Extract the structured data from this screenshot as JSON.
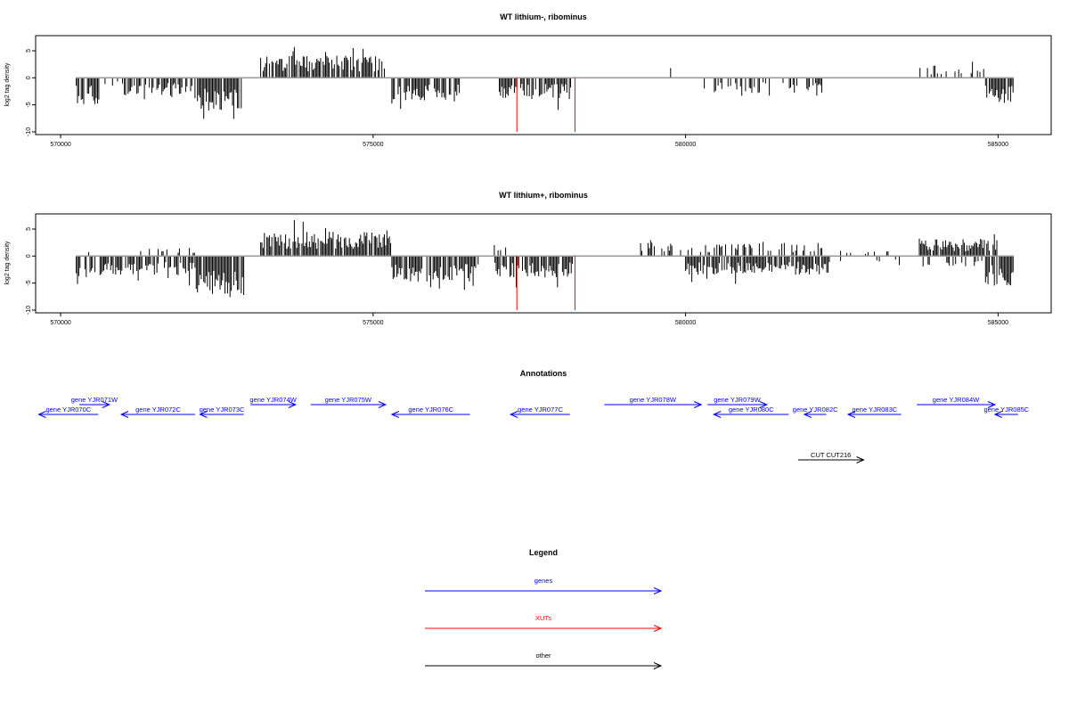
{
  "chart_data": [
    {
      "type": "bar",
      "title": "WT lithium-, ribominus",
      "ylabel": "log2 tag density",
      "xlabel": "",
      "xlim": [
        569600,
        585850
      ],
      "ylim": [
        -10.5,
        7.8
      ],
      "x_ticks": [
        570000,
        575000,
        580000,
        585000
      ],
      "y_ticks": [
        -10,
        -5,
        0,
        5
      ],
      "grid": false,
      "profile": {
        "x_start": 570250,
        "x_end": 585250,
        "step": 20,
        "regions": [
          {
            "from": 570250,
            "to": 570650,
            "strand": "minus",
            "level": 4.0,
            "fill": 0.7
          },
          {
            "from": 570650,
            "to": 571000,
            "strand": "minus",
            "level": 1.5,
            "fill": 0.3
          },
          {
            "from": 571000,
            "to": 572150,
            "strand": "minus",
            "level": 2.8,
            "fill": 0.65
          },
          {
            "from": 572150,
            "to": 572900,
            "strand": "minus",
            "level": 5.2,
            "fill": 0.9
          },
          {
            "from": 573200,
            "to": 575200,
            "strand": "plus",
            "level": 3.3,
            "fill": 0.85
          },
          {
            "from": 575300,
            "to": 576400,
            "strand": "minus",
            "level": 3.5,
            "fill": 0.75
          },
          {
            "from": 577000,
            "to": 578200,
            "strand": "minus",
            "level": 3.2,
            "fill": 0.8
          },
          {
            "from": 579000,
            "to": 580000,
            "strand": "plus",
            "level": 1.5,
            "fill": 0.03
          },
          {
            "from": 580300,
            "to": 582200,
            "strand": "minus",
            "level": 2.3,
            "fill": 0.3
          },
          {
            "from": 582500,
            "to": 583500,
            "strand": "plus",
            "level": 1.0,
            "fill": 0.02
          },
          {
            "from": 583000,
            "to": 583500,
            "strand": "minus",
            "level": 2.0,
            "fill": 0.04
          },
          {
            "from": 583750,
            "to": 584800,
            "strand": "plus",
            "level": 1.8,
            "fill": 0.3
          },
          {
            "from": 584800,
            "to": 585250,
            "strand": "minus",
            "level": 3.8,
            "fill": 0.85
          }
        ]
      },
      "xut_lines": [
        {
          "x": 577300,
          "y": -10.0,
          "color": "#ff0000"
        },
        {
          "x": 578230,
          "y": -10.0,
          "color": "#ff0000"
        }
      ]
    },
    {
      "type": "bar",
      "title": "WT lithium+, ribominus",
      "ylabel": "log2 tag density",
      "xlabel": "",
      "xlim": [
        569600,
        585850
      ],
      "ylim": [
        -10.5,
        7.8
      ],
      "x_ticks": [
        570000,
        575000,
        580000,
        585000
      ],
      "y_ticks": [
        -10,
        -5,
        0,
        5
      ],
      "grid": false,
      "profile": {
        "x_start": 570250,
        "x_end": 585250,
        "step": 20,
        "regions": [
          {
            "from": 570250,
            "to": 570700,
            "strand": "minus",
            "level": 3.5,
            "fill": 0.7
          },
          {
            "from": 570250,
            "to": 570700,
            "strand": "plus",
            "level": 1.2,
            "fill": 0.15
          },
          {
            "from": 570700,
            "to": 572150,
            "strand": "minus",
            "level": 3.0,
            "fill": 0.75
          },
          {
            "from": 571000,
            "to": 572150,
            "strand": "plus",
            "level": 1.3,
            "fill": 0.15
          },
          {
            "from": 572150,
            "to": 572950,
            "strand": "minus",
            "level": 5.8,
            "fill": 0.95
          },
          {
            "from": 573200,
            "to": 575300,
            "strand": "plus",
            "level": 3.6,
            "fill": 0.9
          },
          {
            "from": 575300,
            "to": 576700,
            "strand": "minus",
            "level": 3.8,
            "fill": 0.85
          },
          {
            "from": 576900,
            "to": 577300,
            "strand": "plus",
            "level": 2.0,
            "fill": 0.2
          },
          {
            "from": 576950,
            "to": 578200,
            "strand": "minus",
            "level": 3.2,
            "fill": 0.85
          },
          {
            "from": 579200,
            "to": 582200,
            "strand": "plus",
            "level": 2.0,
            "fill": 0.4
          },
          {
            "from": 580000,
            "to": 582300,
            "strand": "minus",
            "level": 2.8,
            "fill": 0.85
          },
          {
            "from": 582300,
            "to": 583700,
            "strand": "plus",
            "level": 1.0,
            "fill": 0.15
          },
          {
            "from": 582300,
            "to": 583500,
            "strand": "minus",
            "level": 1.0,
            "fill": 0.15
          },
          {
            "from": 583700,
            "to": 585000,
            "strand": "plus",
            "level": 2.6,
            "fill": 0.85
          },
          {
            "from": 583700,
            "to": 584800,
            "strand": "minus",
            "level": 1.5,
            "fill": 0.2
          },
          {
            "from": 584800,
            "to": 585250,
            "strand": "minus",
            "level": 4.5,
            "fill": 0.95
          }
        ]
      },
      "xut_lines": [
        {
          "x": 577300,
          "y": -10.0,
          "color": "#ff0000"
        },
        {
          "x": 578230,
          "y": -10.0,
          "color": "#ff0000"
        }
      ]
    }
  ],
  "annotations": {
    "title": "Annotations",
    "genes": [
      {
        "label": "gene YJR070C",
        "start": 569650,
        "end": 570600,
        "strand": "-",
        "row": 1,
        "color": "#0000ff"
      },
      {
        "label": "gene YJR071W",
        "start": 570300,
        "end": 570780,
        "strand": "+",
        "row": 0,
        "color": "#0000ff"
      },
      {
        "label": "gene YJR072C",
        "start": 570970,
        "end": 572150,
        "strand": "-",
        "row": 1,
        "color": "#0000ff"
      },
      {
        "label": "gene YJR073C",
        "start": 572230,
        "end": 572930,
        "strand": "-",
        "row": 1,
        "color": "#0000ff"
      },
      {
        "label": "gene YJR074W",
        "start": 573040,
        "end": 573760,
        "strand": "+",
        "row": 0,
        "color": "#0000ff"
      },
      {
        "label": "gene YJR075W",
        "start": 574000,
        "end": 575200,
        "strand": "+",
        "row": 0,
        "color": "#0000ff"
      },
      {
        "label": "gene YJR076C",
        "start": 575300,
        "end": 576550,
        "strand": "-",
        "row": 1,
        "color": "#0000ff"
      },
      {
        "label": "gene YJR077C",
        "start": 577200,
        "end": 578150,
        "strand": "-",
        "row": 1,
        "color": "#0000ff"
      },
      {
        "label": "gene YJR078W",
        "start": 578700,
        "end": 580250,
        "strand": "+",
        "row": 0,
        "color": "#0000ff"
      },
      {
        "label": "gene YJR079W",
        "start": 580350,
        "end": 581300,
        "strand": "+",
        "row": 0,
        "color": "#0000ff"
      },
      {
        "label": "gene YJR080C",
        "start": 580450,
        "end": 581650,
        "strand": "-",
        "row": 1,
        "color": "#0000ff"
      },
      {
        "label": "gene YJR082C",
        "start": 581900,
        "end": 582250,
        "strand": "-",
        "row": 1,
        "color": "#0000ff"
      },
      {
        "label": "gene YJR083C",
        "start": 582600,
        "end": 583450,
        "strand": "-",
        "row": 1,
        "color": "#0000ff"
      },
      {
        "label": "gene YJR084W",
        "start": 583700,
        "end": 584950,
        "strand": "+",
        "row": 0,
        "color": "#0000ff"
      },
      {
        "label": "gene YJR085C",
        "start": 584950,
        "end": 585320,
        "strand": "-",
        "row": 1,
        "color": "#0000ff"
      },
      {
        "label": "CUT CUT216",
        "start": 581800,
        "end": 582850,
        "strand": "+",
        "row": 2,
        "color": "#000000"
      }
    ]
  },
  "legend": {
    "title": "Legend",
    "items": [
      {
        "label": "genes",
        "color": "#0000ff"
      },
      {
        "label": "XUTs",
        "color": "#ff0000"
      },
      {
        "label": "other",
        "color": "#000000"
      }
    ]
  }
}
